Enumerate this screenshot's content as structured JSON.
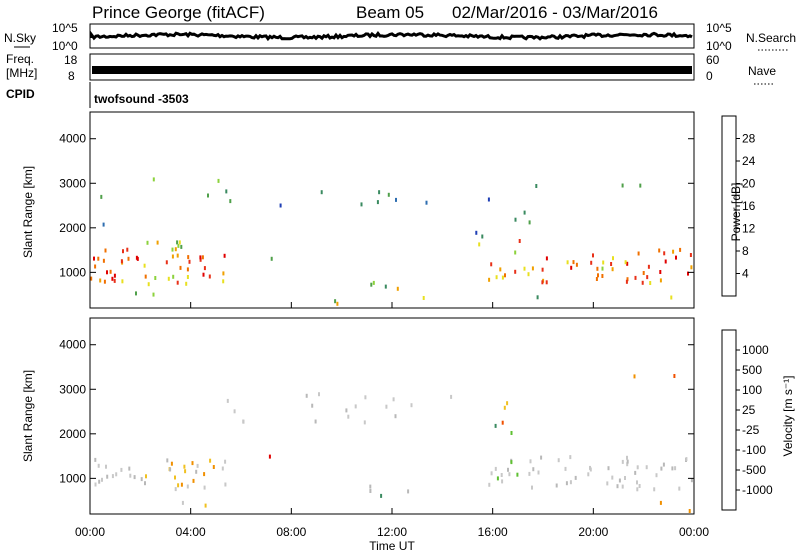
{
  "header": {
    "station": "Prince George (fitACF)",
    "beam": "Beam 05",
    "date_range": "02/Mar/2016 - 03/Mar/2016"
  },
  "top_panels": {
    "nsky_label": "N.Sky",
    "nsky_ticks": [
      "10^5",
      "10^0"
    ],
    "nsearch_label": "N.Search",
    "nsearch_ticks": [
      "10^5",
      "10^0"
    ],
    "freq_label_1": "Freq.",
    "freq_label_2": "[MHz]",
    "freq_ticks": [
      "18",
      "8"
    ],
    "nave_label": "Nave",
    "nave_ticks": [
      "60",
      "0"
    ],
    "cpid_label": "CPID",
    "cpid_value": "twofsound -3503"
  },
  "colors": {
    "power_scale": [
      "#1a1aff",
      "#1f3fb5",
      "#2e6eb0",
      "#3a8a60",
      "#4fa04a",
      "#8cd23c",
      "#e8e020",
      "#f0a000",
      "#f07000",
      "#e83018",
      "#e00000"
    ],
    "velocity_scale": [
      "#1a1aff",
      "#2a5fd0",
      "#3a8a60",
      "#5fc032",
      "#b8b8b8",
      "#c8c8c8",
      "#f0c020",
      "#f09000",
      "#f05000",
      "#e00000"
    ]
  },
  "chart_data": [
    {
      "type": "heatmap",
      "panel": "power",
      "ylabel": "Slant Range [km]",
      "ylim": [
        200,
        4600
      ],
      "yticks": [
        "1000",
        "2000",
        "3000",
        "4000"
      ],
      "xlim": [
        0,
        24
      ],
      "colorbar_label": "Power [dB]",
      "colorbar_ticks": [
        "4",
        "8",
        "12",
        "16",
        "20",
        "24",
        "28"
      ],
      "colorbar_range": [
        0,
        30
      ],
      "grid": false
    },
    {
      "type": "heatmap",
      "panel": "velocity",
      "ylabel": "Slant Range [km]",
      "ylim": [
        200,
        4600
      ],
      "yticks": [
        "1000",
        "2000",
        "3000",
        "4000"
      ],
      "xlim": [
        0,
        24
      ],
      "xticks": [
        "00:00",
        "04:00",
        "08:00",
        "12:00",
        "16:00",
        "20:00",
        "00:00"
      ],
      "xlabel": "Time UT",
      "colorbar_label": "Velocity [m s⁻¹]",
      "colorbar_ticks": [
        "1000",
        "500",
        "100",
        "25",
        "-25",
        "-100",
        "-500",
        "-1000"
      ],
      "grid": false
    }
  ]
}
